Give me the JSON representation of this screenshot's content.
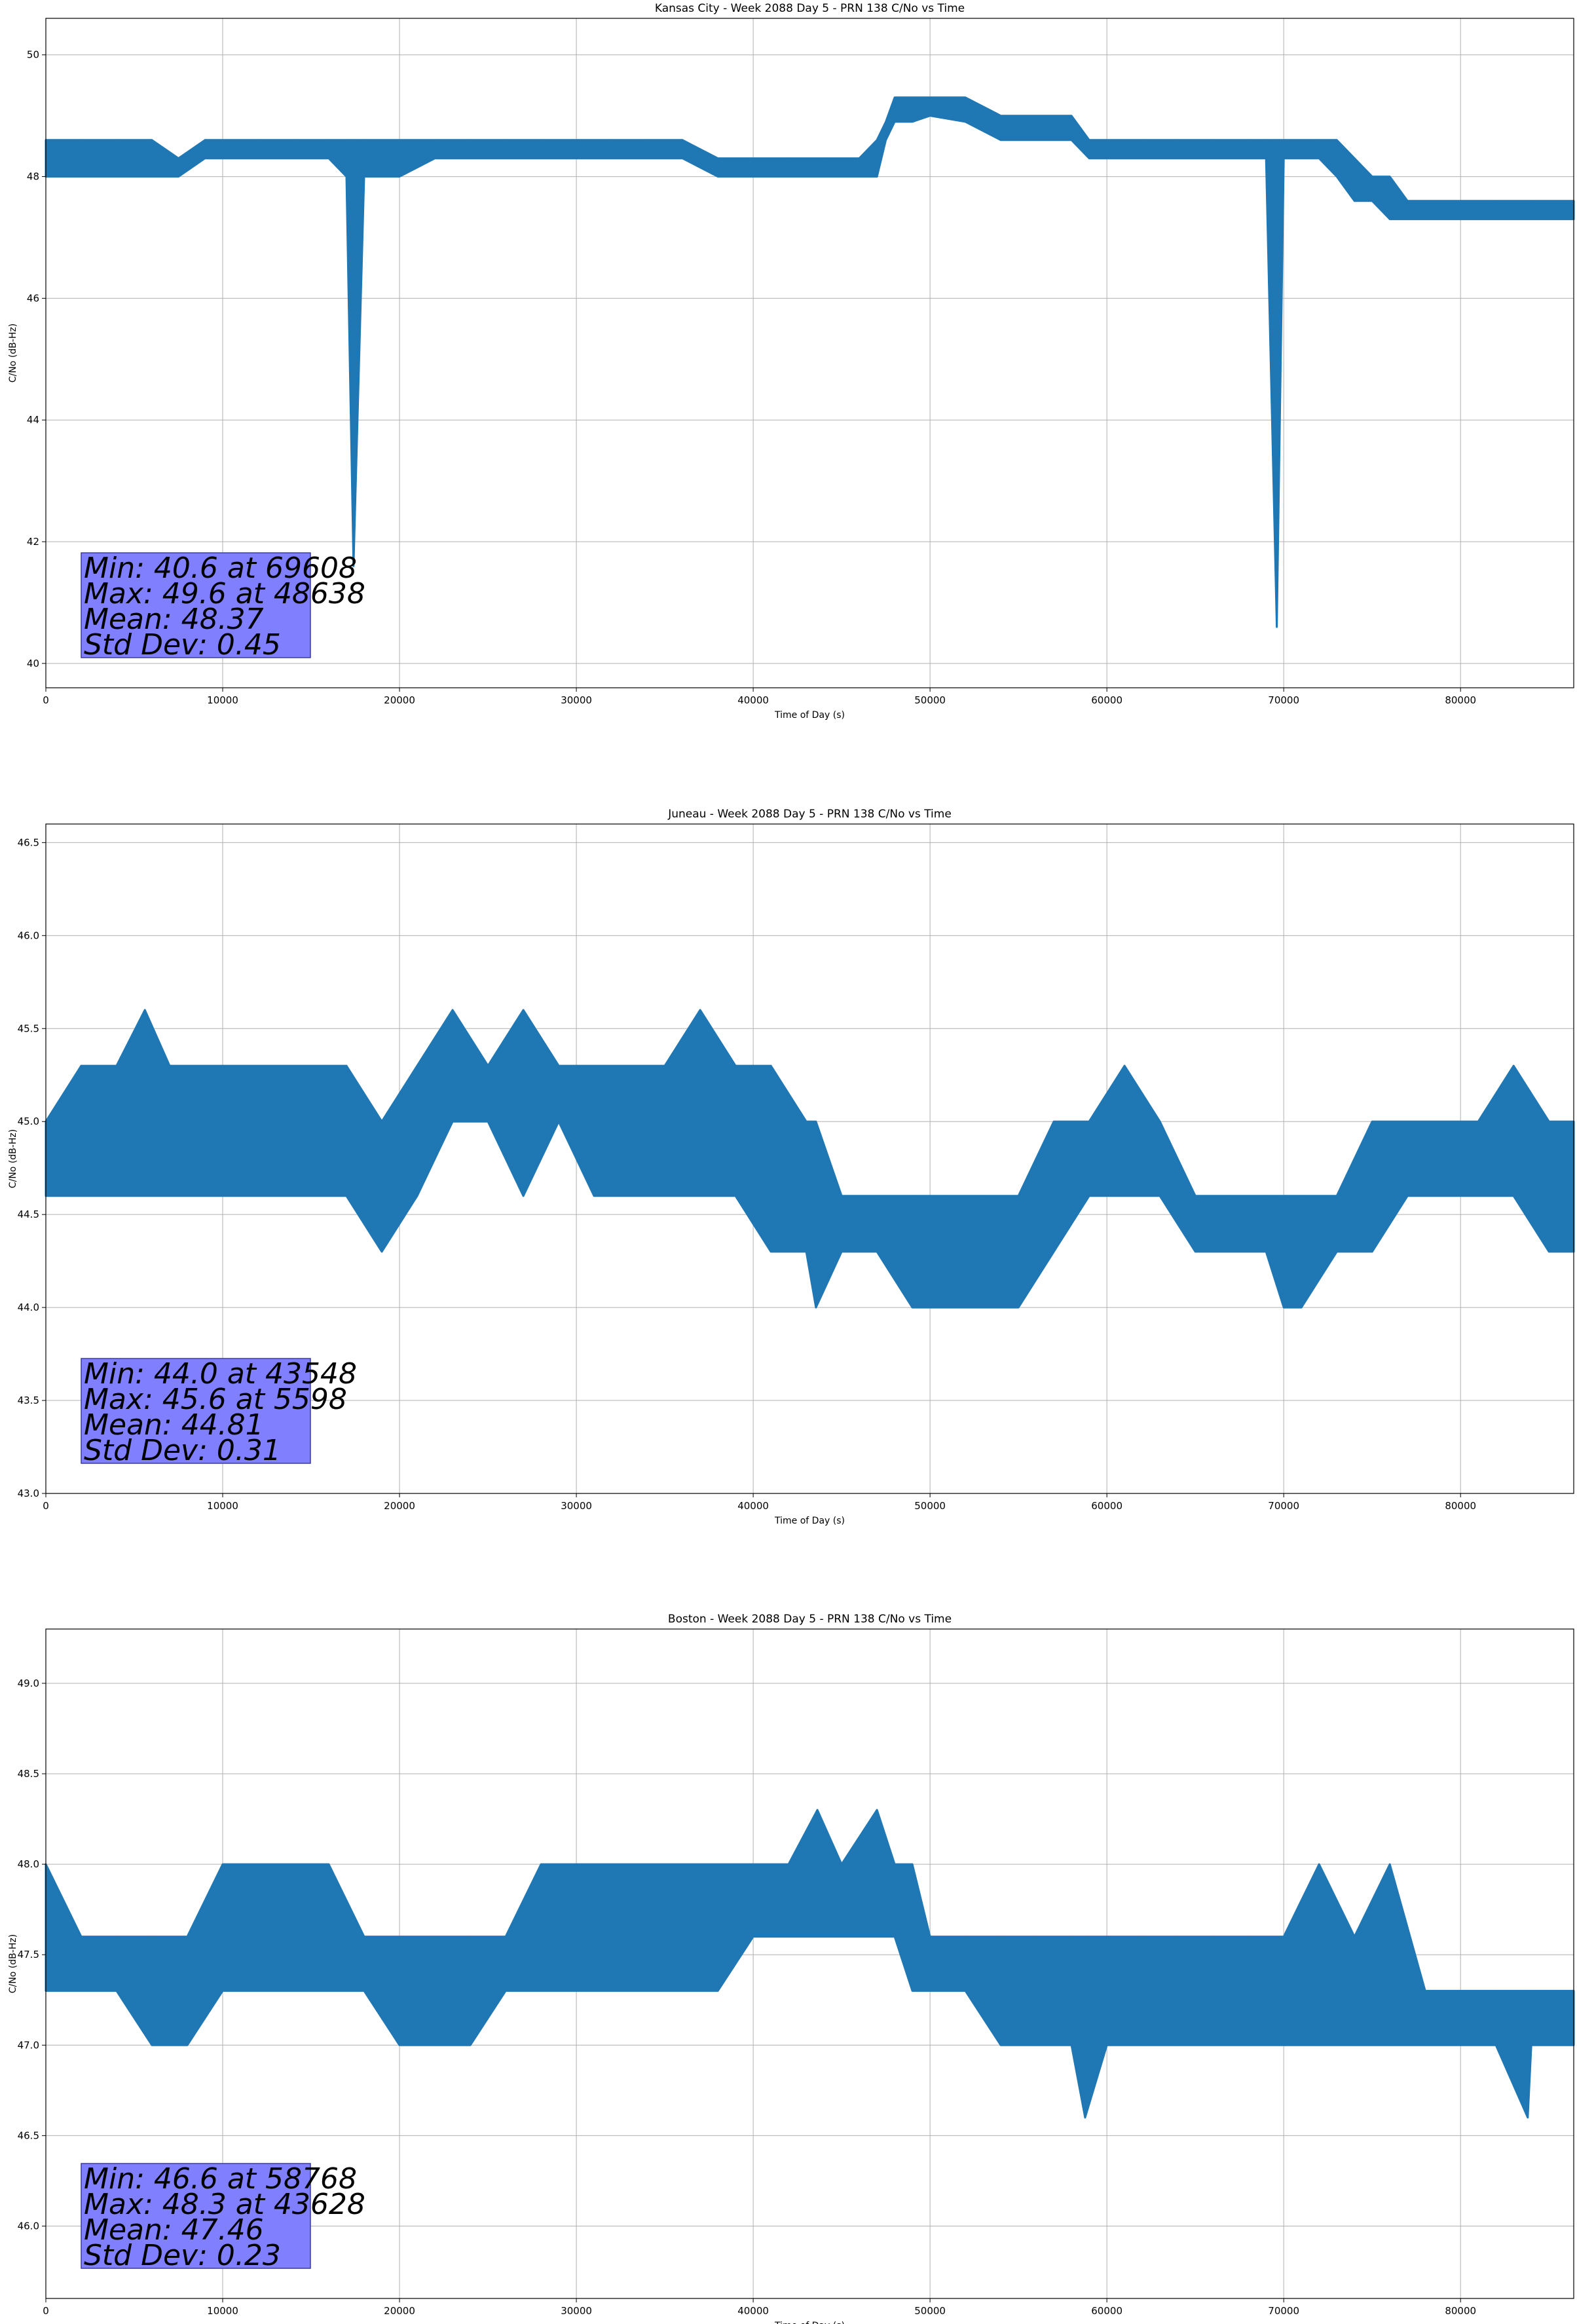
{
  "colors": {
    "line": "#1f77b4",
    "grid": "#b0b0b0",
    "stats_box": "#8080ff",
    "stats_box_edge": "#3a3a9e"
  },
  "chart_data": [
    {
      "type": "line",
      "title": "Kansas City - Week 2088 Day 5 - PRN 138 C/No vs Time",
      "xlabel": "Time of Day (s)",
      "ylabel": "C/No (dB-Hz)",
      "xlim": [
        0,
        86400
      ],
      "ylim": [
        39.6,
        50.6
      ],
      "xticks": [
        0,
        10000,
        20000,
        30000,
        40000,
        50000,
        60000,
        70000,
        80000
      ],
      "xtick_labels": [
        "0",
        "10000",
        "20000",
        "30000",
        "40000",
        "50000",
        "60000",
        "70000",
        "80000"
      ],
      "yticks": [
        40,
        42,
        44,
        46,
        48,
        50
      ],
      "ytick_labels": [
        "40",
        "42",
        "44",
        "46",
        "48",
        "50"
      ],
      "grid": true,
      "stats": [
        "Min: 40.6 at 69608",
        "Max: 49.6 at 48638",
        "Mean: 48.37",
        "Std Dev: 0.45"
      ],
      "series": [
        {
          "x": [
            0,
            2000,
            4000,
            6000,
            7500,
            9000,
            10000,
            12000,
            14000,
            16000,
            17000,
            17400,
            18000,
            20000,
            22000,
            24000,
            26000,
            28000,
            30000,
            32000,
            34000,
            36000,
            38000,
            40000,
            42000,
            44000,
            46000,
            47000,
            47500,
            48000,
            49000,
            50000,
            52000,
            54000,
            56000,
            58000,
            59000,
            60000,
            62000,
            64000,
            66000,
            68000,
            69000,
            69608,
            70000,
            72000,
            73000,
            74000,
            75000,
            76000,
            77000,
            78000,
            80000,
            82000,
            84000,
            86400
          ],
          "upper": [
            48.6,
            48.6,
            48.6,
            48.6,
            48.3,
            48.6,
            48.6,
            48.6,
            48.6,
            48.6,
            48.6,
            48.6,
            48.6,
            48.6,
            48.6,
            48.6,
            48.6,
            48.6,
            48.6,
            48.6,
            48.6,
            48.6,
            48.3,
            48.3,
            48.3,
            48.3,
            48.3,
            48.6,
            48.9,
            49.3,
            49.3,
            49.3,
            49.3,
            49.0,
            49.0,
            49.0,
            48.6,
            48.6,
            48.6,
            48.6,
            48.6,
            48.6,
            48.6,
            48.6,
            48.6,
            48.6,
            48.6,
            48.3,
            48.0,
            48.0,
            47.6,
            47.6,
            47.6,
            47.6,
            47.6,
            47.6
          ],
          "lower": [
            48.0,
            48.0,
            48.0,
            48.0,
            48.0,
            48.3,
            48.3,
            48.3,
            48.3,
            48.3,
            48.0,
            41.6,
            48.0,
            48.0,
            48.3,
            48.3,
            48.3,
            48.3,
            48.3,
            48.3,
            48.3,
            48.3,
            48.0,
            48.0,
            48.0,
            48.0,
            48.0,
            48.0,
            48.6,
            48.9,
            48.9,
            49.0,
            48.9,
            48.6,
            48.6,
            48.6,
            48.3,
            48.3,
            48.3,
            48.3,
            48.3,
            48.3,
            48.3,
            40.6,
            48.3,
            48.3,
            48.0,
            47.6,
            47.6,
            47.3,
            47.3,
            47.3,
            47.3,
            47.3,
            47.3,
            47.3
          ]
        }
      ]
    },
    {
      "type": "line",
      "title": "Juneau - Week 2088 Day 5 - PRN 138 C/No vs Time",
      "xlabel": "Time of Day (s)",
      "ylabel": "C/No (dB-Hz)",
      "xlim": [
        0,
        86400
      ],
      "ylim": [
        43.0,
        46.6
      ],
      "xticks": [
        0,
        10000,
        20000,
        30000,
        40000,
        50000,
        60000,
        70000,
        80000
      ],
      "xtick_labels": [
        "0",
        "10000",
        "20000",
        "30000",
        "40000",
        "50000",
        "60000",
        "70000",
        "80000"
      ],
      "yticks": [
        43.0,
        43.5,
        44.0,
        44.5,
        45.0,
        45.5,
        46.0,
        46.5
      ],
      "ytick_labels": [
        "43.0",
        "43.5",
        "44.0",
        "44.5",
        "45.0",
        "45.5",
        "46.0",
        "46.5"
      ],
      "grid": true,
      "stats": [
        "Min: 44.0 at 43548",
        "Max: 45.6 at 5598",
        "Mean: 44.81",
        "Std Dev: 0.31"
      ],
      "series": [
        {
          "x": [
            0,
            2000,
            4000,
            5598,
            7000,
            9000,
            11000,
            13000,
            15000,
            17000,
            19000,
            21000,
            23000,
            25000,
            27000,
            29000,
            31000,
            33000,
            35000,
            37000,
            39000,
            41000,
            43000,
            43548,
            45000,
            47000,
            49000,
            51000,
            53000,
            55000,
            57000,
            59000,
            61000,
            63000,
            65000,
            67000,
            69000,
            70000,
            71000,
            73000,
            75000,
            77000,
            79000,
            81000,
            83000,
            85000,
            86400
          ],
          "upper": [
            45.0,
            45.3,
            45.3,
            45.6,
            45.3,
            45.3,
            45.3,
            45.3,
            45.3,
            45.3,
            45.0,
            45.3,
            45.6,
            45.3,
            45.6,
            45.3,
            45.3,
            45.3,
            45.3,
            45.6,
            45.3,
            45.3,
            45.0,
            45.0,
            44.6,
            44.6,
            44.6,
            44.6,
            44.6,
            44.6,
            45.0,
            45.0,
            45.3,
            45.0,
            44.6,
            44.6,
            44.6,
            44.6,
            44.6,
            44.6,
            45.0,
            45.0,
            45.0,
            45.0,
            45.3,
            45.0,
            45.0
          ],
          "lower": [
            44.6,
            44.6,
            44.6,
            44.6,
            44.6,
            44.6,
            44.6,
            44.6,
            44.6,
            44.6,
            44.3,
            44.6,
            45.0,
            45.0,
            44.6,
            45.0,
            44.6,
            44.6,
            44.6,
            44.6,
            44.6,
            44.3,
            44.3,
            44.0,
            44.3,
            44.3,
            44.0,
            44.0,
            44.0,
            44.0,
            44.3,
            44.6,
            44.6,
            44.6,
            44.3,
            44.3,
            44.3,
            44.0,
            44.0,
            44.3,
            44.3,
            44.6,
            44.6,
            44.6,
            44.6,
            44.3,
            44.3
          ]
        }
      ]
    },
    {
      "type": "line",
      "title": "Boston - Week 2088 Day 5 - PRN 138 C/No vs Time",
      "xlabel": "Time of Day (s)",
      "ylabel": "C/No (dB-Hz)",
      "xlim": [
        0,
        86400
      ],
      "ylim": [
        45.6,
        49.3
      ],
      "xticks": [
        0,
        10000,
        20000,
        30000,
        40000,
        50000,
        60000,
        70000,
        80000
      ],
      "xtick_labels": [
        "0",
        "10000",
        "20000",
        "30000",
        "40000",
        "50000",
        "60000",
        "70000",
        "80000"
      ],
      "yticks": [
        46.0,
        46.5,
        47.0,
        47.5,
        48.0,
        48.5,
        49.0
      ],
      "ytick_labels": [
        "46.0",
        "46.5",
        "47.0",
        "47.5",
        "48.0",
        "48.5",
        "49.0"
      ],
      "grid": true,
      "stats": [
        "Min: 46.6 at 58768",
        "Max: 48.3 at 43628",
        "Mean: 47.46",
        "Std Dev: 0.23"
      ],
      "series": [
        {
          "x": [
            0,
            2000,
            4000,
            6000,
            8000,
            10000,
            12000,
            14000,
            16000,
            18000,
            20000,
            22000,
            24000,
            26000,
            28000,
            30000,
            32000,
            34000,
            36000,
            38000,
            40000,
            42000,
            43628,
            45000,
            47000,
            48000,
            49000,
            50000,
            52000,
            54000,
            56000,
            58000,
            58768,
            60000,
            62000,
            64000,
            66000,
            68000,
            70000,
            72000,
            74000,
            76000,
            78000,
            80000,
            82000,
            83800,
            84000,
            86400
          ],
          "upper": [
            48.0,
            47.6,
            47.6,
            47.6,
            47.6,
            48.0,
            48.0,
            48.0,
            48.0,
            47.6,
            47.6,
            47.6,
            47.6,
            47.6,
            48.0,
            48.0,
            48.0,
            48.0,
            48.0,
            48.0,
            48.0,
            48.0,
            48.3,
            48.0,
            48.3,
            48.0,
            48.0,
            47.6,
            47.6,
            47.6,
            47.6,
            47.6,
            47.6,
            47.6,
            47.6,
            47.6,
            47.6,
            47.6,
            47.6,
            48.0,
            47.6,
            48.0,
            47.3,
            47.3,
            47.3,
            47.3,
            47.3,
            47.3
          ],
          "lower": [
            47.3,
            47.3,
            47.3,
            47.0,
            47.0,
            47.3,
            47.3,
            47.3,
            47.3,
            47.3,
            47.0,
            47.0,
            47.0,
            47.3,
            47.3,
            47.3,
            47.3,
            47.3,
            47.3,
            47.3,
            47.6,
            47.6,
            47.6,
            47.6,
            47.6,
            47.6,
            47.3,
            47.3,
            47.3,
            47.0,
            47.0,
            47.0,
            46.6,
            47.0,
            47.0,
            47.0,
            47.0,
            47.0,
            47.0,
            47.0,
            47.0,
            47.0,
            47.0,
            47.0,
            47.0,
            46.6,
            47.0,
            47.0
          ]
        }
      ]
    }
  ]
}
